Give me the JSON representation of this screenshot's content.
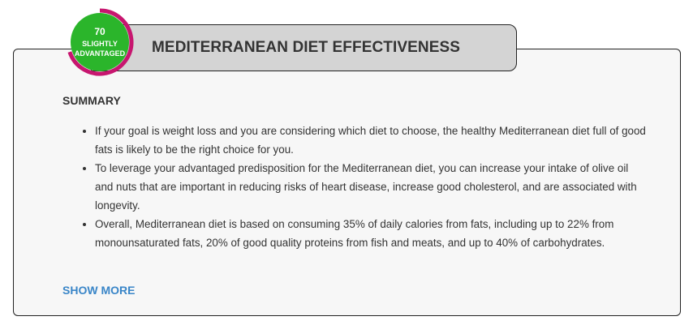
{
  "score": {
    "value": "70",
    "label_line1": "SLIGHTLY",
    "label_line2": "ADVANTAGED",
    "fill_fraction": 0.7,
    "badge_color": "#2bb52b",
    "ring_color": "#c7166f"
  },
  "card": {
    "title": "MEDITERRANEAN DIET EFFECTIVENESS",
    "summary_heading": "SUMMARY",
    "points": [
      "If your goal is weight loss and you are considering which diet to choose, the healthy Mediterranean diet full of good fats is likely to be the right choice for you.",
      "To leverage your advantaged predisposition for the Mediterranean diet, you can increase your intake of olive oil and nuts that are important in reducing risks of heart disease, increase good cholesterol, and are associated with longevity.",
      "Overall, Mediterranean diet is based on consuming 35% of daily calories from fats, including up to 22% from monounsaturated fats, 20% of good quality proteins from fish and meats, and up to 40% of carbohydrates."
    ],
    "show_more_label": "SHOW MORE",
    "link_color": "#3a86c8"
  }
}
